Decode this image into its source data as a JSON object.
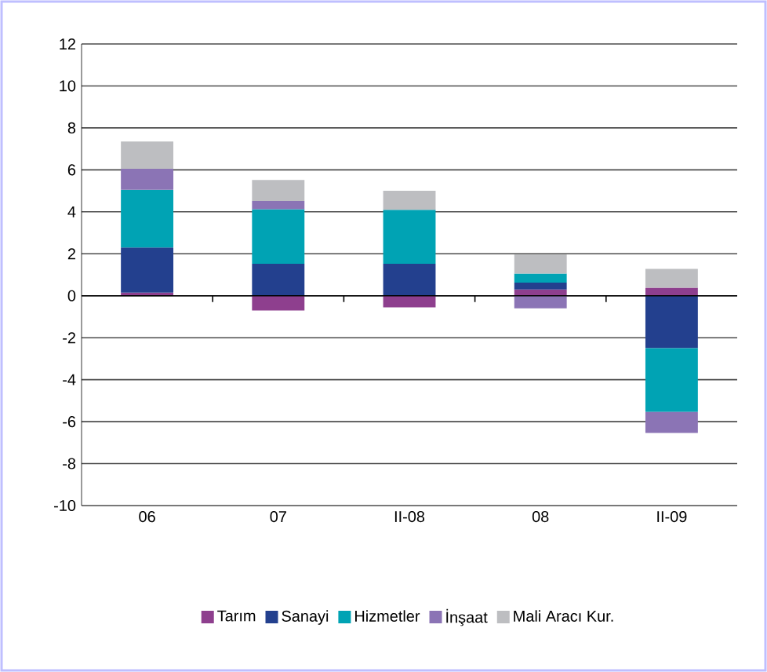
{
  "chart_data": {
    "type": "bar",
    "stacked": true,
    "categories": [
      "06",
      "07",
      "II-08",
      "08",
      "II-09"
    ],
    "series": [
      {
        "name": "Tarım",
        "color": "#8e3f8e",
        "values": [
          0.15,
          -0.7,
          -0.55,
          0.3,
          0.38
        ]
      },
      {
        "name": "Sanayi",
        "color": "#23408e",
        "values": [
          2.15,
          1.52,
          1.52,
          0.33,
          -2.5
        ]
      },
      {
        "name": "Hizmetler",
        "color": "#00a3b4",
        "values": [
          2.75,
          2.6,
          2.58,
          0.43,
          -3.04
        ]
      },
      {
        "name": "İnşaat",
        "color": "#8b74b5",
        "values": [
          1.0,
          0.4,
          0,
          -0.6,
          -1.0
        ]
      },
      {
        "name": "Mali Aracı Kur.",
        "color": "#bdbec1",
        "values": [
          1.3,
          1.0,
          0.9,
          0.9,
          0.9
        ]
      }
    ],
    "ylim": [
      -10,
      12
    ],
    "yticks": [
      -10,
      -8,
      -6,
      -4,
      -2,
      0,
      2,
      4,
      6,
      8,
      10,
      12
    ],
    "grid": "y",
    "legend": "bottom"
  }
}
